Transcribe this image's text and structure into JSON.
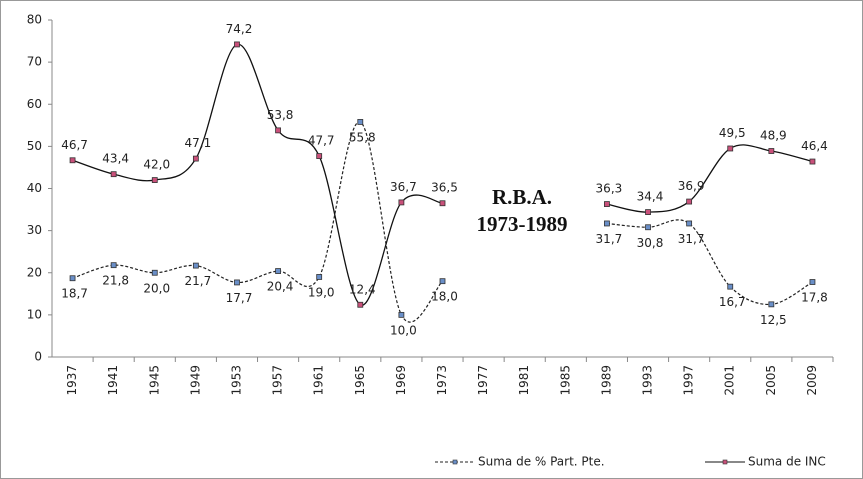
{
  "chart_data": {
    "type": "line",
    "categories": [
      "1937",
      "1941",
      "1945",
      "1949",
      "1953",
      "1957",
      "1961",
      "1965",
      "1969",
      "1973",
      "1977",
      "1981",
      "1985",
      "1989",
      "1993",
      "1997",
      "2001",
      "2005",
      "2009"
    ],
    "series": [
      {
        "name": "Suma de  % Part. Pte.",
        "color": "#222222",
        "dash": true,
        "values": [
          18.7,
          21.8,
          20.0,
          21.7,
          17.7,
          20.4,
          19.0,
          55.8,
          10.0,
          18.0,
          null,
          null,
          null,
          31.7,
          30.8,
          31.7,
          16.7,
          12.5,
          17.8
        ],
        "value_labels": [
          "18,7",
          "21,8",
          "20,0",
          "21,7",
          "17,7",
          "20,4",
          "19,0",
          "55,8",
          "10,0",
          "18,0",
          null,
          null,
          null,
          "31,7",
          "30,8",
          "31,7",
          "16,7",
          "12,5",
          "17,8"
        ]
      },
      {
        "name": "Suma de  INC",
        "color": "#111111",
        "dash": false,
        "values": [
          46.7,
          43.4,
          42.0,
          47.1,
          74.2,
          53.8,
          47.7,
          12.4,
          36.7,
          36.5,
          null,
          null,
          null,
          36.3,
          34.4,
          36.9,
          49.5,
          48.9,
          46.4
        ],
        "value_labels": [
          "46,7",
          "43,4",
          "42,0",
          "47,1",
          "74,2",
          "53,8",
          "47,7",
          "12,4",
          "36,7",
          "36,5",
          null,
          null,
          null,
          "36,3",
          "34,4",
          "36,9",
          "49,5",
          "48,9",
          "46,4"
        ]
      }
    ],
    "annotation": [
      "R.B.A.",
      "1973-1989"
    ],
    "ylim": [
      0,
      80
    ],
    "yticks": [
      0,
      10,
      20,
      30,
      40,
      50,
      60,
      70,
      80
    ],
    "grid": false,
    "legend": "bottom"
  }
}
